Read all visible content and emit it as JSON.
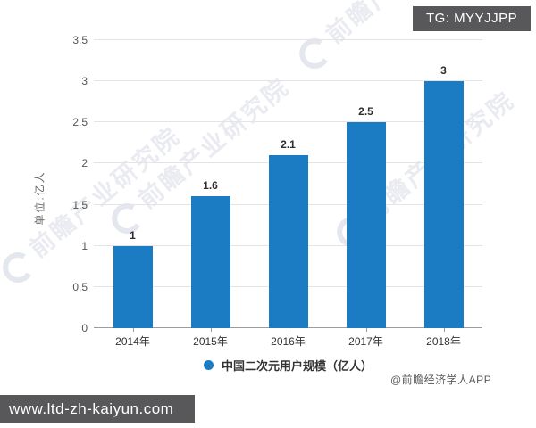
{
  "badge": {
    "text": "TG: MYYJJPP"
  },
  "watermark": {
    "text": "前瞻产业研究院"
  },
  "chart_data": {
    "type": "bar",
    "categories": [
      "2014年",
      "2015年",
      "2016年",
      "2017年",
      "2018年"
    ],
    "values": [
      1,
      1.6,
      2.1,
      2.5,
      3
    ],
    "value_labels": [
      "1",
      "1.6",
      "2.1",
      "2.5",
      "3"
    ],
    "title": "",
    "xlabel": "",
    "ylabel": "单位:亿人",
    "ylim": [
      0,
      3.5
    ],
    "yticks": [
      0,
      0.5,
      1,
      1.5,
      2,
      2.5,
      3,
      3.5
    ],
    "grid": true,
    "bar_color": "#1b7cc4",
    "legend": {
      "label": "中国二次元用户规模（亿人）",
      "position": "bottom"
    }
  },
  "attribution": {
    "text": "@前瞻经济学人APP"
  },
  "footer": {
    "url": "www.ltd-zh-kaiyun.com"
  }
}
